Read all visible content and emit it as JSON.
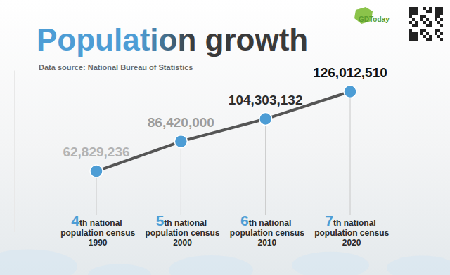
{
  "chart_data": {
    "type": "line",
    "title": "Population growth",
    "subtitle": "Data source: National Bureau of Statistics",
    "annotations": [
      "GDToday"
    ],
    "categories": [
      "4th national population census 1990",
      "5th national population census 2000",
      "6th national population census 2010",
      "7th national population census 2020"
    ],
    "values": [
      62829236,
      86420000,
      104303132,
      126012510
    ],
    "value_labels": [
      "62,829,236",
      "86,420,000",
      "104,303,132",
      "126,012,510"
    ],
    "color": "#4d9dd5",
    "marker": "circle",
    "data_labels": true,
    "grid": false,
    "tick_labels": false,
    "ylim": [
      15000000,
      143000000
    ],
    "yticks": []
  }
}
